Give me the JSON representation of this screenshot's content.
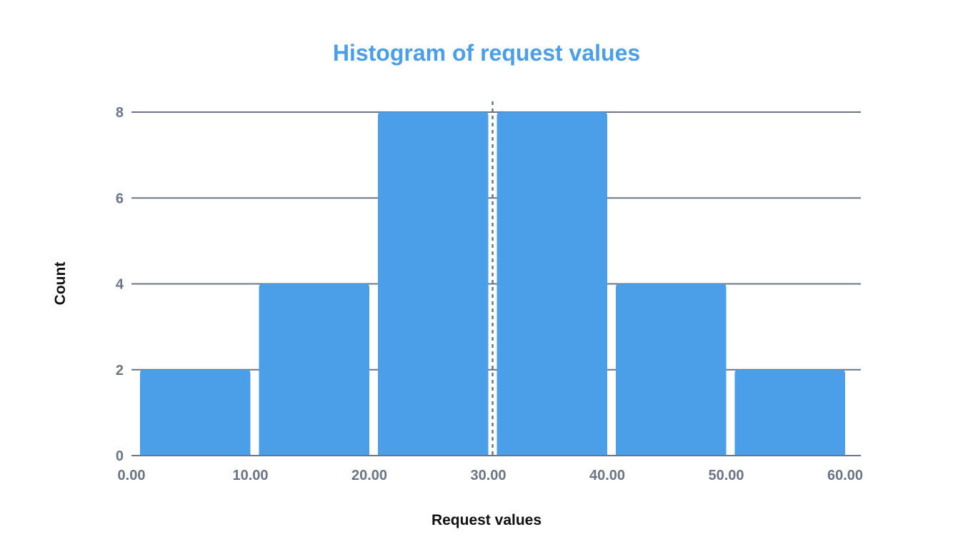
{
  "colors": {
    "bar": "#4a9fe8",
    "title": "#4a9fe8",
    "grid": "#6b7585",
    "tick_text": "#6b7585",
    "axis_title_text": "#111111",
    "reference_line": "#6b7585"
  },
  "chart_data": {
    "type": "bar",
    "title": "Histogram of request values",
    "xlabel": "Request values",
    "ylabel": "Count",
    "bins": [
      {
        "start": 0,
        "end": 10,
        "count": 2
      },
      {
        "start": 10,
        "end": 20,
        "count": 4
      },
      {
        "start": 20,
        "end": 30,
        "count": 8
      },
      {
        "start": 30,
        "end": 40,
        "count": 8
      },
      {
        "start": 40,
        "end": 50,
        "count": 4
      },
      {
        "start": 50,
        "end": 60,
        "count": 2
      }
    ],
    "x_ticks": [
      "0.00",
      "10.00",
      "20.00",
      "30.00",
      "40.00",
      "50.00",
      "60.00"
    ],
    "y_ticks": [
      "0",
      "2",
      "4",
      "6",
      "8"
    ],
    "xlim": [
      0,
      60
    ],
    "ylim": [
      0,
      8
    ],
    "grid": "horizontal",
    "reference_line": {
      "x": 30,
      "style": "dashed"
    }
  }
}
